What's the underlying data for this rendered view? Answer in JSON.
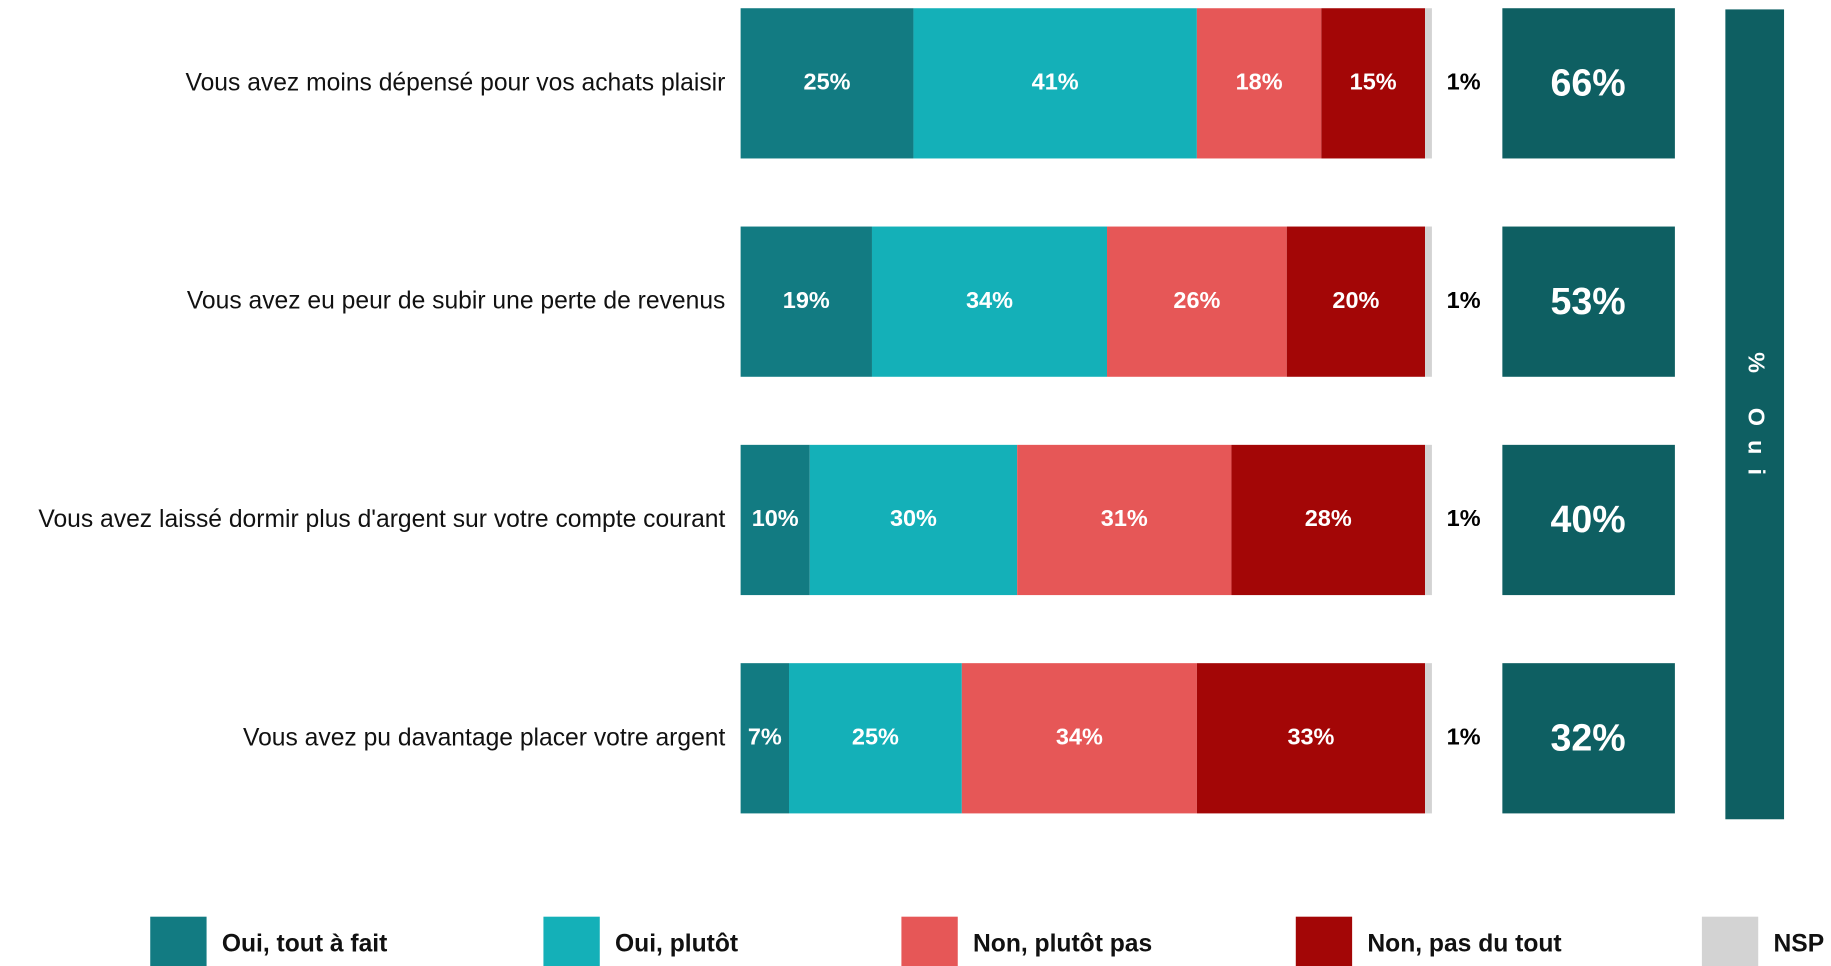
{
  "chart_data": {
    "type": "bar",
    "orientation": "horizontal",
    "stacked": true,
    "categories": [
      "Vous avez moins dépensé pour vos achats plaisir",
      "Vous avez eu peur de subir une perte de revenus",
      "Vous avez laissé dormir plus d'argent sur votre compte courant",
      "Vous avez pu davantage placer votre argent"
    ],
    "xlim": [
      0,
      100
    ],
    "series": [
      {
        "name": "Oui, tout à fait",
        "color": "#127b82",
        "values": [
          25,
          19,
          10,
          7
        ],
        "value_labels": [
          "25%",
          "19%",
          "10%",
          "7%"
        ]
      },
      {
        "name": "Oui, plutôt",
        "color": "#14b0b8",
        "values": [
          41,
          34,
          30,
          25
        ],
        "value_labels": [
          "41%",
          "34%",
          "30%",
          "25%"
        ]
      },
      {
        "name": "Non, plutôt pas",
        "color": "#e65757",
        "values": [
          18,
          26,
          31,
          34
        ],
        "value_labels": [
          "18%",
          "26%",
          "31%",
          "34%"
        ]
      },
      {
        "name": "Non, pas du tout",
        "color": "#a30606",
        "values": [
          15,
          20,
          28,
          33
        ],
        "value_labels": [
          "15%",
          "20%",
          "28%",
          "33%"
        ]
      },
      {
        "name": "NSP",
        "color": "#d3d3d3",
        "values": [
          1,
          1,
          1,
          1
        ],
        "value_labels": [
          "1%",
          "1%",
          "1%",
          "1%"
        ]
      }
    ],
    "totals": {
      "name": "% Oui",
      "color": "#0e5f62",
      "values": [
        66,
        53,
        40,
        32
      ],
      "value_labels": [
        "66%",
        "53%",
        "40%",
        "32%"
      ]
    },
    "legend": "bottom"
  }
}
